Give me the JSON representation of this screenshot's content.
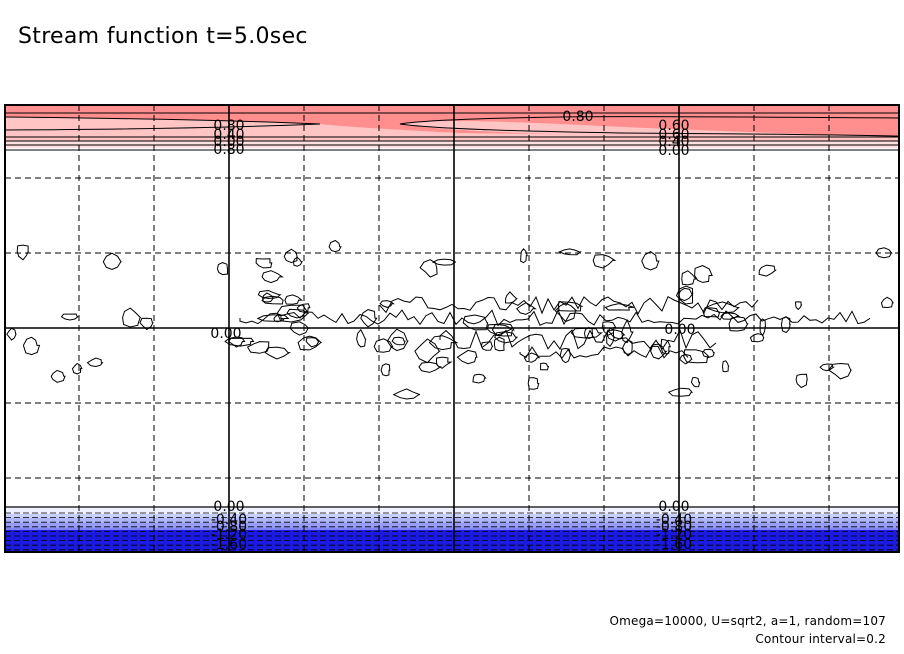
{
  "title": "Stream function t=5.0sec",
  "footnote": {
    "params": "Omega=10000, U=sqrt2, a=1, random=107",
    "interval": "Contour interval=0.2"
  },
  "colors": {
    "positive_dark": "#ff8f8f",
    "positive_light": "#ffc4c4",
    "negative_light": "#aab4ff",
    "negative_dark": "#1a1ae0",
    "line": "#000000"
  },
  "chart_data": {
    "type": "contour",
    "title": "Stream function t=5.0sec",
    "contour_interval": 0.2,
    "grid": "dashed",
    "top_band_labels": [
      "0.80",
      "0.80",
      "0.60",
      "0.40",
      "0.00",
      "0.80",
      "0.60",
      "0.40",
      "0.00"
    ],
    "bottom_band_labels": [
      "0.00",
      "-0.40",
      "-0.80",
      "-1.20",
      "-1.60",
      "0.00",
      "-0.40",
      "-0.80",
      "-1.20",
      "-1.60"
    ],
    "middle_labels": [
      "0.00",
      "0.00"
    ],
    "levels_positive": [
      0.8,
      0.6,
      0.4,
      0.2,
      0.0
    ],
    "levels_negative": [
      -0.2,
      -0.4,
      -0.6,
      -0.8,
      -1.0,
      -1.2,
      -1.4,
      -1.6
    ]
  }
}
